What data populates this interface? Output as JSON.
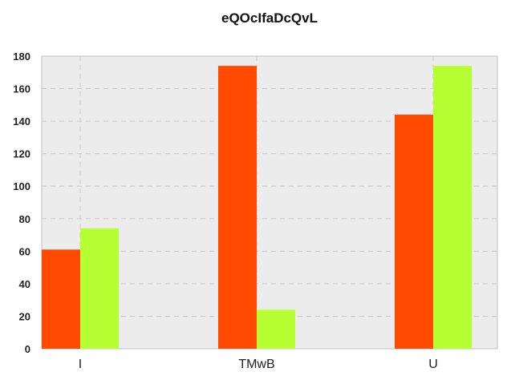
{
  "chart_data": {
    "type": "bar",
    "title": "eQOcIfaDcQvL",
    "xlabel": "",
    "ylabel": "",
    "categories": [
      "I",
      "TMwB",
      "U"
    ],
    "series": [
      {
        "values": [
          61,
          174,
          144
        ],
        "color": "#ff4a00"
      },
      {
        "values": [
          74,
          24,
          174
        ],
        "color": "#b5ff33"
      }
    ],
    "ylim": [
      0,
      180
    ],
    "yticks": [
      0,
      20,
      40,
      60,
      80,
      100,
      120,
      140,
      160,
      180
    ],
    "grid": true,
    "plot_background": "#ececec"
  }
}
